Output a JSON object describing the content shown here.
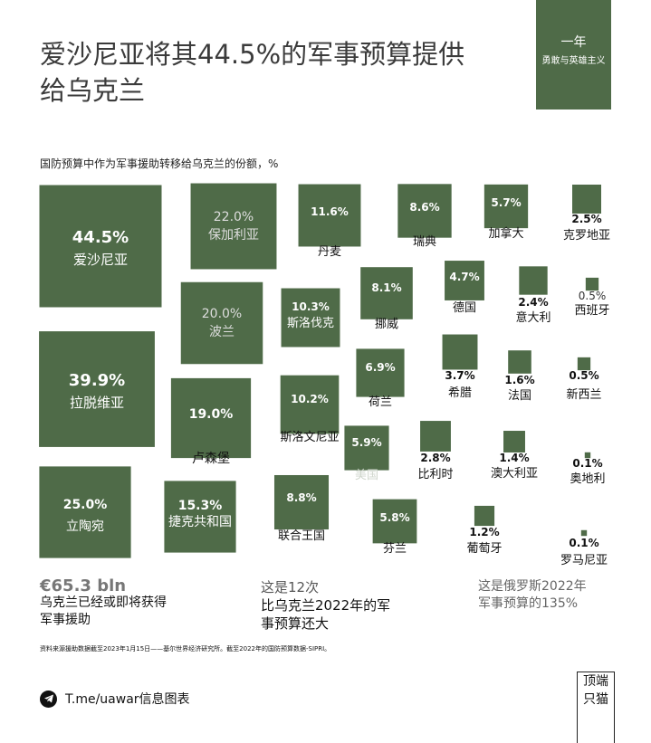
{
  "title": "爱沙尼亚将其44.5%的军事预算提供给乌克兰",
  "badge": {
    "line1": "一年",
    "line2": "勇敢与英雄主义"
  },
  "chart_data": {
    "type": "treemap",
    "title": "国防预算中作为军事援助转移给乌克兰的份额，%",
    "unit": "%",
    "color": "#4f6b48",
    "items": [
      {
        "name": "爱沙尼亚",
        "label": "44.5%",
        "value": 44.5
      },
      {
        "name": "拉脱维亚",
        "label": "39.9%",
        "value": 39.9
      },
      {
        "name": "立陶宛",
        "label": "25.0%",
        "value": 25.0
      },
      {
        "name": "保加利亚",
        "label": "22.0%",
        "value": 22.0
      },
      {
        "name": "波兰",
        "label": "20.0%",
        "value": 20.0
      },
      {
        "name": "卢森堡",
        "label": "19.0%",
        "value": 19.0
      },
      {
        "name": "捷克共和国",
        "label": "15.3%",
        "value": 15.3
      },
      {
        "name": "丹麦",
        "label": "11.6%",
        "value": 11.6
      },
      {
        "name": "斯洛伐克",
        "label": "10.3%",
        "value": 10.3
      },
      {
        "name": "斯洛文尼亚",
        "label": "10.2%",
        "value": 10.2
      },
      {
        "name": "联合王国",
        "label": "8.8%",
        "value": 8.8
      },
      {
        "name": "瑞典",
        "label": "8.6%",
        "value": 8.6
      },
      {
        "name": "挪威",
        "label": "8.1%",
        "value": 8.1
      },
      {
        "name": "荷兰",
        "label": "6.9%",
        "value": 6.9
      },
      {
        "name": "美国",
        "label": "5.9%",
        "value": 5.9
      },
      {
        "name": "芬兰",
        "label": "5.8%",
        "value": 5.8
      },
      {
        "name": "加拿大",
        "label": "5.7%",
        "value": 5.7
      },
      {
        "name": "德国",
        "label": "4.7%",
        "value": 4.7
      },
      {
        "name": "希腊",
        "label": "3.7%",
        "value": 3.7
      },
      {
        "name": "比利时",
        "label": "2.8%",
        "value": 2.8
      },
      {
        "name": "克罗地亚",
        "label": "2.5%",
        "value": 2.5
      },
      {
        "name": "意大利",
        "label": "2.4%",
        "value": 2.4
      },
      {
        "name": "法国",
        "label": "1.6%",
        "value": 1.6
      },
      {
        "name": "澳大利亚",
        "label": "1.4%",
        "value": 1.4
      },
      {
        "name": "葡萄牙",
        "label": "1.2%",
        "value": 1.2
      },
      {
        "name": "西班牙",
        "label": "0.5%",
        "value": 0.5
      },
      {
        "name": "新西兰",
        "label": "0.5%",
        "value": 0.5
      },
      {
        "name": "奥地利",
        "label": "0.1%",
        "value": 0.1
      },
      {
        "name": "罗马尼亚",
        "label": "0.1%",
        "value": 0.1
      }
    ]
  },
  "footer": {
    "stat1_value": "€65.3 bln",
    "stat1_text1": "乌克兰已经或即将获得",
    "stat1_text2": "军事援助",
    "stat2_text1": "这是12次",
    "stat2_text2": "比乌克兰2022年的军",
    "stat2_text3": "事预算还大",
    "stat3_text1": "这是俄罗斯2022年",
    "stat3_text2": "军事预算的135%"
  },
  "source": "资料来源援助数据截至2023年1月15日——基尔世界经济研究所。截至2022年的国防预算数据-SIPRI。",
  "telegram": "T.me/uawar信息图表",
  "corner": {
    "line1": "顶端",
    "line2": "只猫"
  }
}
